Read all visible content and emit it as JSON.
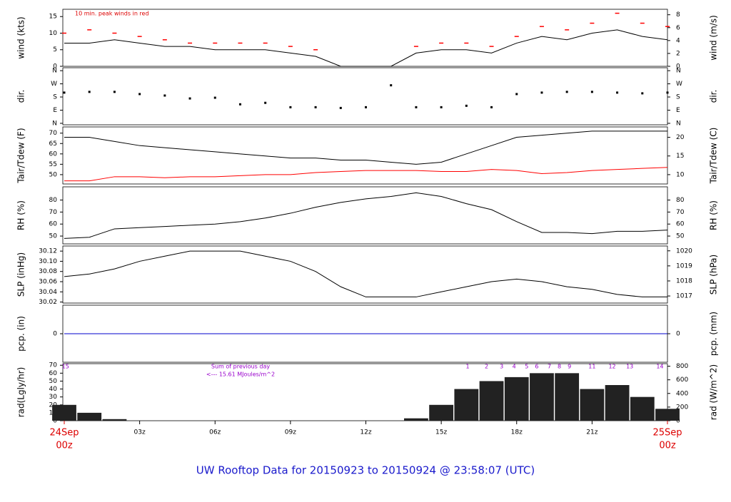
{
  "footer": "UW Rooftop Data for 20150923  to  20150924 @ 23:58:07  (UTC)",
  "chart_data": [
    {
      "type": "line",
      "ylabel": "wind (kts)",
      "y2label": "wind (m/s)",
      "annotation": "10 min. peak winds in red",
      "xlim": [
        0,
        24
      ],
      "ylim": [
        0,
        17.2
      ],
      "yticks": [
        0,
        5,
        10,
        15
      ],
      "y2lim": [
        0,
        8.85
      ],
      "y2ticks": [
        0,
        2,
        4,
        6,
        8
      ],
      "x": [
        0,
        1,
        2,
        3,
        4,
        5,
        6,
        7,
        8,
        9,
        10,
        11,
        12,
        13,
        14,
        15,
        16,
        17,
        18,
        19,
        20,
        21,
        22,
        23,
        24
      ],
      "series": [
        {
          "color": "#000000",
          "values": [
            7,
            7,
            8,
            7,
            6,
            6,
            5,
            5,
            5,
            4,
            3,
            0,
            0,
            0,
            4,
            5,
            5,
            4,
            7,
            9,
            8,
            10,
            11,
            9,
            8
          ]
        },
        {
          "color": "#ff0000",
          "style": "dash",
          "values": [
            10,
            11,
            10,
            9,
            8,
            7,
            7,
            7,
            7,
            6,
            5,
            null,
            null,
            null,
            6,
            7,
            7,
            6,
            9,
            12,
            11,
            13,
            16,
            13,
            12
          ]
        }
      ]
    },
    {
      "type": "scatter",
      "ylabel": "dir.",
      "y2label": "dir.",
      "xlim": [
        0,
        24
      ],
      "ylim": [
        -10,
        380
      ],
      "yticks": [
        {
          "value": 0,
          "label": "N"
        },
        {
          "value": 90,
          "label": "E"
        },
        {
          "value": 180,
          "label": "S"
        },
        {
          "value": 270,
          "label": "W"
        },
        {
          "value": 360,
          "label": "N"
        }
      ],
      "y2lim": [
        -10,
        380
      ],
      "y2ticks": [
        {
          "value": 0,
          "label": "N"
        },
        {
          "value": 90,
          "label": "E"
        },
        {
          "value": 180,
          "label": "S"
        },
        {
          "value": 270,
          "label": "W"
        },
        {
          "value": 360,
          "label": "N"
        }
      ],
      "x": [
        0,
        1,
        2,
        3,
        4,
        5,
        6,
        7,
        8,
        9,
        10,
        11,
        12,
        13,
        14,
        15,
        16,
        17,
        18,
        19,
        20,
        21,
        22,
        23,
        24
      ],
      "series": [
        {
          "color": "#000000",
          "values": [
            210,
            215,
            215,
            200,
            190,
            170,
            175,
            130,
            140,
            110,
            110,
            105,
            110,
            260,
            110,
            110,
            120,
            110,
            200,
            210,
            215,
            215,
            210,
            205,
            210
          ]
        }
      ]
    },
    {
      "type": "line",
      "ylabel": "Tair/Tdew (F)",
      "y2label": "Tair/Tdew (C)",
      "xlim": [
        0,
        24
      ],
      "ylim": [
        45.5,
        73
      ],
      "yticks": [
        50,
        55,
        60,
        65,
        70
      ],
      "y2lim": [
        7.5,
        22.78
      ],
      "y2ticks": [
        10,
        15,
        20
      ],
      "x": [
        0,
        1,
        2,
        3,
        4,
        5,
        6,
        7,
        8,
        9,
        10,
        11,
        12,
        13,
        14,
        15,
        16,
        17,
        18,
        19,
        20,
        21,
        22,
        23,
        24
      ],
      "series": [
        {
          "color": "#000000",
          "values": [
            68,
            68,
            66,
            64,
            63,
            62,
            61,
            60,
            59,
            58,
            58,
            57,
            57,
            56,
            55,
            56,
            60,
            64,
            68,
            69,
            70,
            71,
            71,
            71,
            71
          ]
        },
        {
          "color": "#ff0000",
          "values": [
            47,
            47,
            49,
            49,
            48.5,
            49,
            49,
            49.5,
            50,
            50,
            51,
            51.5,
            52,
            52,
            52,
            51.5,
            51.5,
            52.5,
            52,
            50.5,
            51,
            52,
            52.5,
            53,
            53.5
          ]
        }
      ]
    },
    {
      "type": "line",
      "ylabel": "RH (%)",
      "y2label": "RH (%)",
      "xlim": [
        0,
        24
      ],
      "ylim": [
        43.5,
        91
      ],
      "yticks": [
        50,
        60,
        70,
        80
      ],
      "y2lim": [
        43.5,
        91
      ],
      "y2ticks": [
        50,
        60,
        70,
        80
      ],
      "x": [
        0,
        1,
        2,
        3,
        4,
        5,
        6,
        7,
        8,
        9,
        10,
        11,
        12,
        13,
        14,
        15,
        16,
        17,
        18,
        19,
        20,
        21,
        22,
        23,
        24
      ],
      "series": [
        {
          "color": "#000000",
          "values": [
            48,
            49,
            56,
            57,
            58,
            59,
            60,
            62,
            65,
            69,
            74,
            78,
            81,
            83,
            86,
            83,
            77,
            72,
            62,
            53,
            53,
            52,
            54,
            54,
            55
          ]
        }
      ]
    },
    {
      "type": "line",
      "ylabel": "SLP (inHg)",
      "y2label": "SLP (hPa)",
      "xlim": [
        0,
        24
      ],
      "ylim": [
        30.018,
        30.13
      ],
      "yticks": [
        30.02,
        30.04,
        30.06,
        30.08,
        {
          "value": 30.1,
          "label": "30.10"
        },
        30.12
      ],
      "y2lim": [
        1016.53,
        1020.32
      ],
      "y2ticks": [
        1017,
        1018,
        1019,
        1020
      ],
      "x": [
        0,
        1,
        2,
        3,
        4,
        5,
        6,
        7,
        8,
        9,
        10,
        11,
        12,
        13,
        14,
        15,
        16,
        17,
        18,
        19,
        20,
        21,
        22,
        23,
        24
      ],
      "series": [
        {
          "color": "#000000",
          "values": [
            30.07,
            30.075,
            30.085,
            30.1,
            30.11,
            30.12,
            30.12,
            30.12,
            30.11,
            30.1,
            30.08,
            30.05,
            30.03,
            30.03,
            30.03,
            30.04,
            30.05,
            30.06,
            30.065,
            30.06,
            30.05,
            30.045,
            30.035,
            30.03,
            30.03
          ]
        }
      ]
    },
    {
      "type": "line",
      "ylabel": "pcp. (in)",
      "y2label": "pcp. (mm)",
      "xlim": [
        0,
        24
      ],
      "ylim": [
        -0.1,
        0.1
      ],
      "yticks": [
        0
      ],
      "y2lim": [
        -2.54,
        2.54
      ],
      "y2ticks": [
        0
      ],
      "x": [
        0,
        1,
        2,
        3,
        4,
        5,
        6,
        7,
        8,
        9,
        10,
        11,
        12,
        13,
        14,
        15,
        16,
        17,
        18,
        19,
        20,
        21,
        22,
        23,
        24
      ],
      "series": [
        {
          "color": "#0000cc",
          "values": [
            0,
            0,
            0,
            0,
            0,
            0,
            0,
            0,
            0,
            0,
            0,
            0,
            0,
            0,
            0,
            0,
            0,
            0,
            0,
            0,
            0,
            0,
            0,
            0,
            0
          ]
        }
      ]
    },
    {
      "type": "bar",
      "ylabel": "rad(Lgly/hr)",
      "y2label": "rad (W/m^2)",
      "annotations": [
        "Sum of previous day",
        "<--- 15.61 MJoules/m^2"
      ],
      "hour_marks": [
        {
          "value": 0.05,
          "label": "15"
        },
        {
          "value": 16.05,
          "label": "1"
        },
        {
          "value": 16.8,
          "label": "2"
        },
        {
          "value": 17.4,
          "label": "3"
        },
        {
          "value": 17.9,
          "label": "4"
        },
        {
          "value": 18.4,
          "label": "5"
        },
        {
          "value": 18.8,
          "label": "6"
        },
        {
          "value": 19.3,
          "label": "7"
        },
        {
          "value": 19.7,
          "label": "8"
        },
        {
          "value": 20.1,
          "label": "9"
        },
        {
          "value": 21.0,
          "label": "11"
        },
        {
          "value": 21.8,
          "label": "12"
        },
        {
          "value": 22.5,
          "label": "13"
        },
        {
          "value": 23.7,
          "label": "14"
        }
      ],
      "xlim": [
        0,
        24
      ],
      "ylim": [
        0,
        72
      ],
      "yticks": [
        0,
        10,
        20,
        30,
        40,
        50,
        60,
        70
      ],
      "y2lim": [
        0,
        837
      ],
      "y2ticks": [
        0,
        200,
        400,
        600,
        800
      ],
      "xticks": [
        {
          "value": 0,
          "label": "24Sep"
        },
        {
          "value": 3,
          "label": "03z"
        },
        {
          "value": 6,
          "label": "06z"
        },
        {
          "value": 9,
          "label": "09z"
        },
        {
          "value": 12,
          "label": "12z"
        },
        {
          "value": 15,
          "label": "15z"
        },
        {
          "value": 18,
          "label": "18z"
        },
        {
          "value": 21,
          "label": "21z"
        },
        {
          "value": 24,
          "label": "25Sep"
        }
      ],
      "xtick_sublabels": [
        {
          "value": 0,
          "label": "00z"
        },
        {
          "value": 24,
          "label": "00z"
        }
      ],
      "x": [
        0,
        1,
        2,
        3,
        4,
        5,
        6,
        7,
        8,
        9,
        10,
        11,
        12,
        13,
        14,
        15,
        16,
        17,
        18,
        19,
        20,
        21,
        22,
        23,
        24
      ],
      "series": [
        {
          "color": "#222222",
          "values": [
            20,
            10,
            2,
            0,
            0,
            0,
            0,
            0,
            0,
            0,
            0,
            0,
            0,
            0,
            3,
            20,
            40,
            50,
            55,
            60,
            60,
            40,
            45,
            30,
            15
          ]
        }
      ]
    }
  ]
}
